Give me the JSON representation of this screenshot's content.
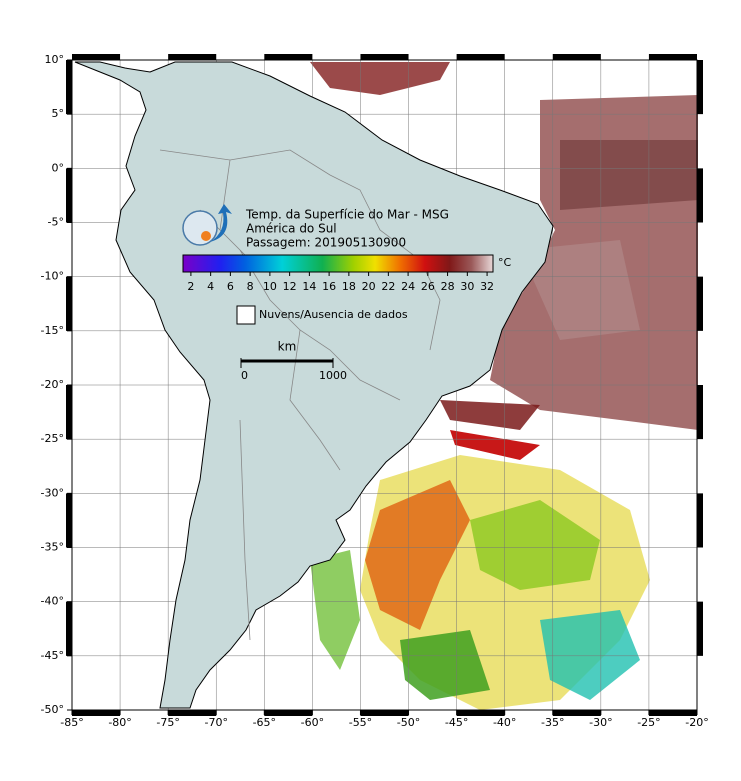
{
  "map": {
    "title": "Temp. da Superfície do Mar - MSG",
    "subtitle": "América do Sul",
    "pass": "Passagem: 201905130900",
    "lon": {
      "range": [
        -85,
        -20
      ],
      "ticks": [
        {
          "value": -85,
          "label": "-85°"
        },
        {
          "value": -80,
          "label": "-80°"
        },
        {
          "value": -75,
          "label": "-75°"
        },
        {
          "value": -70,
          "label": "-70°"
        },
        {
          "value": -65,
          "label": "-65°"
        },
        {
          "value": -60,
          "label": "-60°"
        },
        {
          "value": -55,
          "label": "-55°"
        },
        {
          "value": -50,
          "label": "-50°"
        },
        {
          "value": -45,
          "label": "-45°"
        },
        {
          "value": -40,
          "label": "-40°"
        },
        {
          "value": -35,
          "label": "-35°"
        },
        {
          "value": -30,
          "label": "-30°"
        },
        {
          "value": -25,
          "label": "-25°"
        },
        {
          "value": -20,
          "label": "-20°"
        }
      ]
    },
    "lat": {
      "range": [
        10,
        -50
      ],
      "ticks": [
        {
          "value": 10,
          "label": "10°"
        },
        {
          "value": 5,
          "label": "5°"
        },
        {
          "value": 0,
          "label": "0°"
        },
        {
          "value": -5,
          "label": "-5°"
        },
        {
          "value": -10,
          "label": "-10°"
        },
        {
          "value": -15,
          "label": "-15°"
        },
        {
          "value": -20,
          "label": "-20°"
        },
        {
          "value": -25,
          "label": "-25°"
        },
        {
          "value": -30,
          "label": "-30°"
        },
        {
          "value": -35,
          "label": "-35°"
        },
        {
          "value": -40,
          "label": "-40°"
        },
        {
          "value": -45,
          "label": "-45°"
        },
        {
          "value": -50,
          "label": "-50°"
        }
      ]
    },
    "colorbar": {
      "unit": "°C",
      "range": [
        1.2,
        32.6
      ],
      "ticks": [
        2,
        4,
        6,
        8,
        10,
        12,
        14,
        16,
        18,
        20,
        22,
        24,
        26,
        28,
        30,
        32
      ]
    },
    "legend": "Nuvens/Ausencia de dados",
    "scale_bar": {
      "unit": "km",
      "ticks": [
        0,
        1000
      ]
    }
  }
}
